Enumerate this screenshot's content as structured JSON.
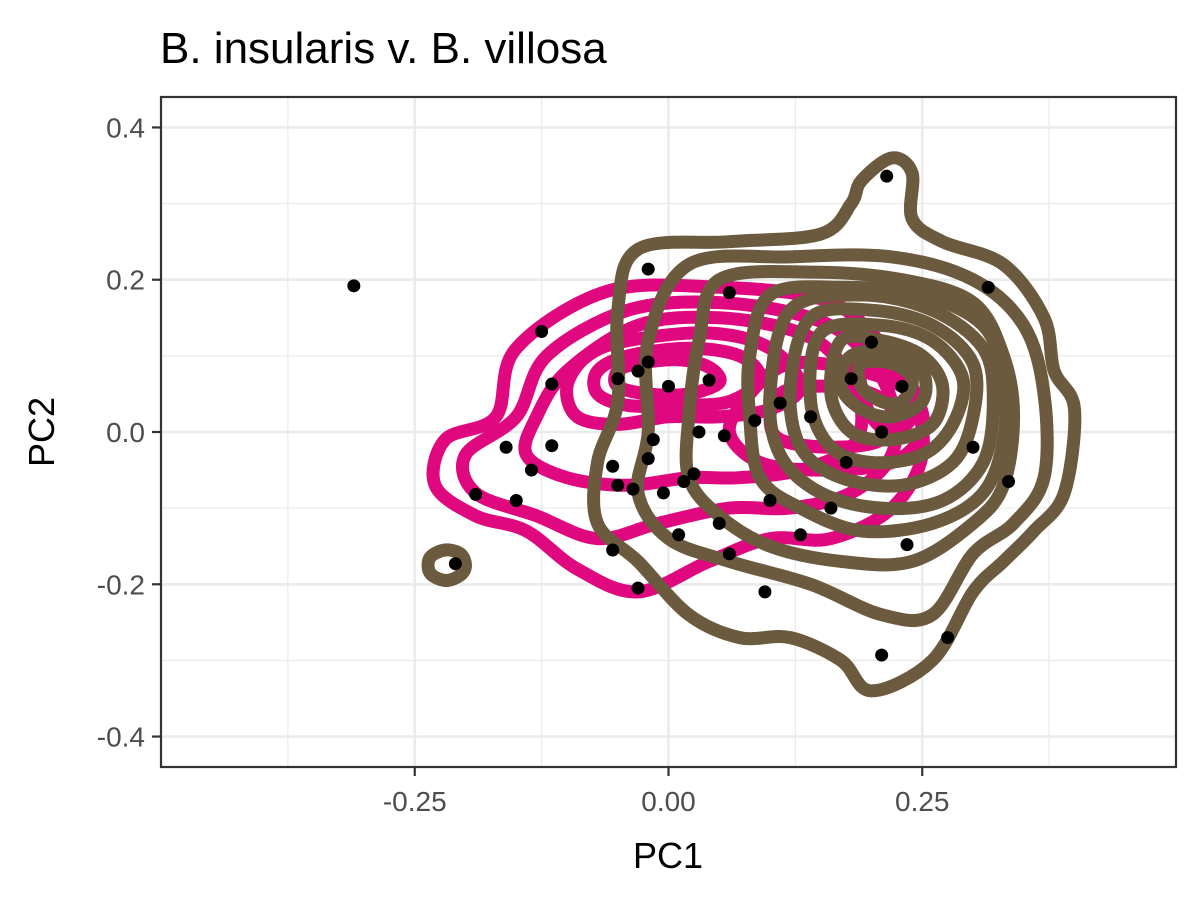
{
  "chart_data": {
    "type": "scatter",
    "title": "B. insularis v. B. villosa",
    "xlabel": "PC1",
    "ylabel": "PC2",
    "xlim": [
      -0.5,
      0.5
    ],
    "ylim": [
      -0.44,
      0.44
    ],
    "x_ticks": [
      -0.25,
      0.0,
      0.25
    ],
    "x_tick_labels": [
      "-0.25",
      "0.00",
      "0.25"
    ],
    "y_ticks": [
      -0.4,
      -0.2,
      0.0,
      0.2,
      0.4
    ],
    "y_tick_labels": [
      "-0.4",
      "-0.2",
      "0.0",
      "0.2",
      "0.4"
    ],
    "grid": true,
    "legend": "none",
    "colors": {
      "insularis": "#e0087f",
      "villosa": "#6b5a3e",
      "points": "#000000",
      "panel_border": "#333333",
      "grid": "#ebebeb"
    },
    "points": [
      [
        -0.31,
        0.192
      ],
      [
        -0.02,
        0.214
      ],
      [
        0.06,
        0.183
      ],
      [
        0.315,
        0.19
      ],
      [
        0.215,
        0.336
      ],
      [
        -0.125,
        0.132
      ],
      [
        -0.02,
        0.092
      ],
      [
        0.2,
        0.118
      ],
      [
        -0.115,
        0.063
      ],
      [
        -0.05,
        0.07
      ],
      [
        -0.03,
        0.08
      ],
      [
        0.04,
        0.068
      ],
      [
        0.0,
        0.06
      ],
      [
        0.11,
        0.038
      ],
      [
        0.085,
        0.015
      ],
      [
        0.055,
        -0.005
      ],
      [
        0.03,
        0.0
      ],
      [
        -0.015,
        -0.01
      ],
      [
        -0.16,
        -0.02
      ],
      [
        -0.115,
        -0.018
      ],
      [
        -0.135,
        -0.05
      ],
      [
        -0.055,
        -0.045
      ],
      [
        -0.02,
        -0.035
      ],
      [
        0.025,
        -0.055
      ],
      [
        0.015,
        -0.065
      ],
      [
        -0.05,
        -0.07
      ],
      [
        -0.035,
        -0.075
      ],
      [
        -0.15,
        -0.09
      ],
      [
        -0.005,
        -0.08
      ],
      [
        0.1,
        -0.09
      ],
      [
        -0.19,
        -0.082
      ],
      [
        0.05,
        -0.12
      ],
      [
        0.01,
        -0.135
      ],
      [
        -0.055,
        -0.155
      ],
      [
        0.06,
        -0.16
      ],
      [
        0.13,
        -0.135
      ],
      [
        0.235,
        -0.148
      ],
      [
        0.335,
        -0.065
      ],
      [
        -0.03,
        -0.205
      ],
      [
        0.095,
        -0.21
      ],
      [
        0.275,
        -0.27
      ],
      [
        0.21,
        -0.293
      ],
      [
        -0.21,
        -0.173
      ],
      [
        0.18,
        0.07
      ],
      [
        0.21,
        -0.0
      ],
      [
        0.175,
        -0.04
      ],
      [
        0.14,
        0.02
      ],
      [
        0.23,
        0.06
      ],
      [
        0.16,
        -0.1
      ],
      [
        0.3,
        -0.02
      ]
    ],
    "series": [
      {
        "group": "insularis",
        "contours": [
          [
            [
              -0.06,
              0.185
            ],
            [
              0.05,
              0.19
            ],
            [
              0.15,
              0.175
            ],
            [
              0.2,
              0.13
            ],
            [
              0.24,
              0.05
            ],
            [
              0.25,
              -0.03
            ],
            [
              0.22,
              -0.1
            ],
            [
              0.16,
              -0.14
            ],
            [
              0.1,
              -0.14
            ],
            [
              0.04,
              -0.17
            ],
            [
              -0.03,
              -0.21
            ],
            [
              -0.09,
              -0.18
            ],
            [
              -0.14,
              -0.13
            ],
            [
              -0.19,
              -0.11
            ],
            [
              -0.23,
              -0.07
            ],
            [
              -0.22,
              -0.01
            ],
            [
              -0.17,
              0.02
            ],
            [
              -0.15,
              0.11
            ]
          ],
          [
            [
              -0.04,
              0.16
            ],
            [
              0.05,
              0.17
            ],
            [
              0.14,
              0.15
            ],
            [
              0.19,
              0.11
            ],
            [
              0.22,
              0.04
            ],
            [
              0.22,
              -0.03
            ],
            [
              0.18,
              -0.08
            ],
            [
              0.12,
              -0.1
            ],
            [
              0.06,
              -0.1
            ],
            [
              -0.01,
              -0.12
            ],
            [
              -0.07,
              -0.14
            ],
            [
              -0.13,
              -0.11
            ],
            [
              -0.19,
              -0.08
            ],
            [
              -0.2,
              -0.03
            ],
            [
              -0.15,
              0.02
            ],
            [
              -0.12,
              0.1
            ]
          ],
          [
            [
              -0.03,
              0.14
            ],
            [
              0.05,
              0.15
            ],
            [
              0.13,
              0.13
            ],
            [
              0.17,
              0.09
            ],
            [
              0.19,
              0.03
            ],
            [
              0.18,
              -0.02
            ],
            [
              0.13,
              -0.05
            ],
            [
              0.07,
              -0.06
            ],
            [
              0.02,
              -0.06
            ],
            [
              -0.04,
              -0.07
            ],
            [
              -0.1,
              -0.06
            ],
            [
              -0.14,
              -0.03
            ],
            [
              -0.13,
              0.02
            ],
            [
              -0.1,
              0.08
            ]
          ],
          [
            [
              -0.04,
              0.12
            ],
            [
              0.04,
              0.13
            ],
            [
              0.1,
              0.11
            ],
            [
              0.13,
              0.06
            ],
            [
              0.1,
              0.03
            ],
            [
              0.05,
              0.02
            ],
            [
              0.0,
              0.02
            ],
            [
              -0.05,
              0.01
            ],
            [
              -0.09,
              0.02
            ],
            [
              -0.1,
              0.06
            ],
            [
              -0.08,
              0.1
            ]
          ],
          [
            [
              -0.04,
              0.1
            ],
            [
              0.02,
              0.11
            ],
            [
              0.07,
              0.1
            ],
            [
              0.09,
              0.07
            ],
            [
              0.06,
              0.04
            ],
            [
              0.01,
              0.035
            ],
            [
              -0.04,
              0.035
            ],
            [
              -0.07,
              0.05
            ],
            [
              -0.07,
              0.08
            ]
          ],
          [
            [
              -0.03,
              0.09
            ],
            [
              0.01,
              0.095
            ],
            [
              0.04,
              0.085
            ],
            [
              0.05,
              0.065
            ],
            [
              0.02,
              0.05
            ],
            [
              -0.02,
              0.05
            ],
            [
              -0.05,
              0.06
            ],
            [
              -0.05,
              0.08
            ]
          ],
          [
            [
              0.12,
              0.09
            ],
            [
              0.19,
              0.08
            ],
            [
              0.24,
              0.05
            ],
            [
              0.25,
              0.0
            ],
            [
              0.22,
              -0.04
            ],
            [
              0.15,
              -0.05
            ],
            [
              0.09,
              -0.04
            ],
            [
              0.06,
              -0.0
            ],
            [
              0.08,
              0.05
            ]
          ],
          [
            [
              0.14,
              0.06
            ],
            [
              0.19,
              0.055
            ],
            [
              0.22,
              0.03
            ],
            [
              0.21,
              -0.01
            ],
            [
              0.16,
              -0.02
            ],
            [
              0.11,
              -0.01
            ],
            [
              0.1,
              0.02
            ],
            [
              0.11,
              0.05
            ]
          ],
          [
            [
              0.19,
              0.09
            ],
            [
              0.22,
              0.085
            ],
            [
              0.24,
              0.06
            ],
            [
              0.24,
              0.02
            ],
            [
              0.22,
              0.0
            ],
            [
              0.2,
              0.02
            ],
            [
              0.19,
              0.06
            ]
          ]
        ]
      },
      {
        "group": "villosa",
        "contours": [
          [
            [
              0.19,
              0.33
            ],
            [
              0.22,
              0.36
            ],
            [
              0.24,
              0.34
            ],
            [
              0.24,
              0.28
            ],
            [
              0.27,
              0.25
            ],
            [
              0.33,
              0.22
            ],
            [
              0.37,
              0.15
            ],
            [
              0.38,
              0.08
            ],
            [
              0.4,
              0.03
            ],
            [
              0.39,
              -0.08
            ],
            [
              0.36,
              -0.13
            ],
            [
              0.33,
              -0.17
            ],
            [
              0.3,
              -0.21
            ],
            [
              0.26,
              -0.3
            ],
            [
              0.2,
              -0.34
            ],
            [
              0.17,
              -0.3
            ],
            [
              0.12,
              -0.27
            ],
            [
              0.07,
              -0.27
            ],
            [
              0.02,
              -0.24
            ],
            [
              -0.03,
              -0.17
            ],
            [
              -0.07,
              -0.12
            ],
            [
              -0.07,
              -0.04
            ],
            [
              -0.05,
              0.04
            ],
            [
              -0.05,
              0.16
            ],
            [
              -0.03,
              0.24
            ],
            [
              0.06,
              0.25
            ],
            [
              0.15,
              0.26
            ],
            [
              0.18,
              0.3
            ]
          ],
          [
            [
              0.02,
              0.22
            ],
            [
              0.12,
              0.23
            ],
            [
              0.22,
              0.23
            ],
            [
              0.3,
              0.2
            ],
            [
              0.35,
              0.14
            ],
            [
              0.37,
              0.05
            ],
            [
              0.37,
              -0.06
            ],
            [
              0.34,
              -0.12
            ],
            [
              0.3,
              -0.16
            ],
            [
              0.26,
              -0.24
            ],
            [
              0.21,
              -0.24
            ],
            [
              0.14,
              -0.2
            ],
            [
              0.06,
              -0.17
            ],
            [
              0.0,
              -0.14
            ],
            [
              -0.03,
              -0.08
            ],
            [
              -0.02,
              0.0
            ],
            [
              -0.02,
              0.12
            ]
          ],
          [
            [
              0.05,
              0.2
            ],
            [
              0.14,
              0.21
            ],
            [
              0.23,
              0.2
            ],
            [
              0.3,
              0.17
            ],
            [
              0.33,
              0.1
            ],
            [
              0.34,
              0.02
            ],
            [
              0.33,
              -0.07
            ],
            [
              0.3,
              -0.12
            ],
            [
              0.24,
              -0.17
            ],
            [
              0.17,
              -0.17
            ],
            [
              0.1,
              -0.15
            ],
            [
              0.05,
              -0.11
            ],
            [
              0.02,
              -0.06
            ],
            [
              0.02,
              0.02
            ],
            [
              0.03,
              0.12
            ]
          ],
          [
            [
              0.1,
              0.18
            ],
            [
              0.17,
              0.19
            ],
            [
              0.25,
              0.18
            ],
            [
              0.31,
              0.14
            ],
            [
              0.33,
              0.07
            ],
            [
              0.33,
              -0.01
            ],
            [
              0.31,
              -0.08
            ],
            [
              0.26,
              -0.12
            ],
            [
              0.19,
              -0.13
            ],
            [
              0.13,
              -0.1
            ],
            [
              0.09,
              -0.06
            ],
            [
              0.08,
              0.02
            ],
            [
              0.08,
              0.1
            ]
          ],
          [
            [
              0.12,
              0.16
            ],
            [
              0.19,
              0.18
            ],
            [
              0.26,
              0.16
            ],
            [
              0.31,
              0.11
            ],
            [
              0.32,
              0.04
            ],
            [
              0.31,
              -0.04
            ],
            [
              0.27,
              -0.09
            ],
            [
              0.21,
              -0.1
            ],
            [
              0.15,
              -0.08
            ],
            [
              0.11,
              -0.03
            ],
            [
              0.1,
              0.05
            ]
          ],
          [
            [
              0.14,
              0.15
            ],
            [
              0.2,
              0.16
            ],
            [
              0.26,
              0.14
            ],
            [
              0.3,
              0.09
            ],
            [
              0.3,
              0.02
            ],
            [
              0.28,
              -0.04
            ],
            [
              0.23,
              -0.07
            ],
            [
              0.17,
              -0.06
            ],
            [
              0.13,
              -0.02
            ],
            [
              0.12,
              0.06
            ]
          ],
          [
            [
              0.15,
              0.13
            ],
            [
              0.21,
              0.14
            ],
            [
              0.26,
              0.12
            ],
            [
              0.29,
              0.07
            ],
            [
              0.28,
              0.01
            ],
            [
              0.25,
              -0.03
            ],
            [
              0.2,
              -0.04
            ],
            [
              0.16,
              -0.02
            ],
            [
              0.14,
              0.04
            ]
          ],
          [
            [
              0.17,
              0.12
            ],
            [
              0.21,
              0.12
            ],
            [
              0.25,
              0.1
            ],
            [
              0.27,
              0.06
            ],
            [
              0.26,
              0.01
            ],
            [
              0.22,
              -0.01
            ],
            [
              0.18,
              0.0
            ],
            [
              0.16,
              0.05
            ]
          ],
          [
            [
              0.18,
              0.1
            ],
            [
              0.22,
              0.105
            ],
            [
              0.25,
              0.08
            ],
            [
              0.25,
              0.04
            ],
            [
              0.22,
              0.02
            ],
            [
              0.19,
              0.03
            ],
            [
              0.17,
              0.06
            ]
          ],
          [
            [
              0.19,
              0.09
            ],
            [
              0.22,
              0.09
            ],
            [
              0.24,
              0.07
            ],
            [
              0.23,
              0.04
            ],
            [
              0.21,
              0.04
            ],
            [
              0.19,
              0.06
            ]
          ],
          [
            [
              -0.2,
              -0.175
            ],
            [
              -0.205,
              -0.16
            ],
            [
              -0.22,
              -0.155
            ],
            [
              -0.235,
              -0.165
            ],
            [
              -0.235,
              -0.185
            ],
            [
              -0.22,
              -0.195
            ],
            [
              -0.205,
              -0.188
            ]
          ]
        ]
      }
    ]
  }
}
